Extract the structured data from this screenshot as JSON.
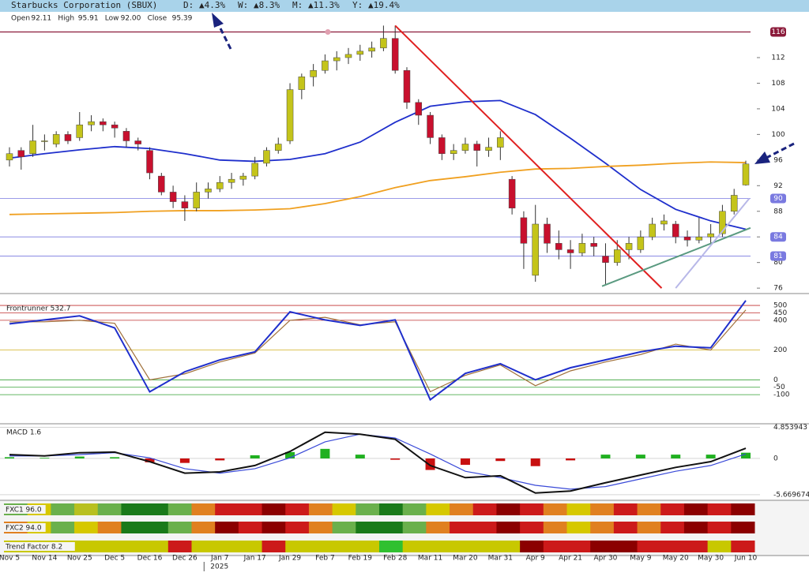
{
  "chart_data": {
    "type": "candlestick",
    "title": "Starbucks Corporation (SBUX)",
    "changes": [
      {
        "label": "D:",
        "value": "▲4.3%"
      },
      {
        "label": "W:",
        "value": "▲8.3%"
      },
      {
        "label": "M:",
        "value": "▲11.3%"
      },
      {
        "label": "Y:",
        "value": "▲19.4%"
      }
    ],
    "ohlc": [
      {
        "label": "Open",
        "value": "92.11"
      },
      {
        "label": "High",
        "value": "95.91"
      },
      {
        "label": "Low",
        "value": "92.00"
      },
      {
        "label": "Close",
        "value": "95.39"
      }
    ],
    "up_color": "#c4c41a",
    "down_color": "#c8102e",
    "categories": [
      "Nov 5",
      null,
      null,
      "Nov 14",
      null,
      null,
      "Nov 25",
      null,
      null,
      "Dec 5",
      null,
      null,
      "Dec 16",
      null,
      null,
      "Dec 26",
      null,
      null,
      "Jan 7",
      null,
      null,
      "Jan 17",
      null,
      null,
      "Jan 29",
      null,
      null,
      "Feb 7",
      null,
      null,
      "Feb 19",
      null,
      null,
      "Feb 28",
      null,
      null,
      "Mar 11",
      null,
      null,
      "Mar 20",
      null,
      null,
      "Mar 31",
      null,
      null,
      "Apr 9",
      null,
      null,
      "Apr 21",
      null,
      null,
      "Apr 30",
      null,
      null,
      "May 9",
      null,
      null,
      "May 20",
      null,
      null,
      "May 30",
      null,
      null,
      "Jun 10"
    ],
    "year_label": {
      "text": "2025",
      "x": 18
    },
    "candles": [
      [
        96,
        98,
        95,
        97
      ],
      [
        97.5,
        98,
        94.5,
        96.5
      ],
      [
        97,
        101.5,
        96.5,
        99
      ],
      [
        99,
        100,
        97.5,
        99
      ],
      [
        98.5,
        100.5,
        98,
        100
      ],
      [
        100,
        100.5,
        98.5,
        99
      ],
      [
        99.5,
        103.5,
        99,
        101.5
      ],
      [
        101.5,
        103,
        100.5,
        102
      ],
      [
        102,
        102.5,
        100.5,
        101.5
      ],
      [
        101.5,
        102,
        99.5,
        101
      ],
      [
        100.5,
        101,
        98,
        99
      ],
      [
        99,
        99.5,
        97.5,
        98.5
      ],
      [
        97.5,
        98,
        93,
        94
      ],
      [
        93.5,
        94,
        90.5,
        91
      ],
      [
        91,
        92,
        88.5,
        89.5
      ],
      [
        89.5,
        90.5,
        86.5,
        88.5
      ],
      [
        88.5,
        92.5,
        88,
        91
      ],
      [
        91,
        92.5,
        90,
        91.5
      ],
      [
        91.5,
        93.5,
        91,
        92.5
      ],
      [
        92.5,
        94,
        91.5,
        93
      ],
      [
        93,
        94,
        92,
        93.5
      ],
      [
        93.5,
        96.5,
        93,
        95.5
      ],
      [
        95.5,
        98,
        95,
        97.5
      ],
      [
        97.5,
        99.5,
        97,
        98.5
      ],
      [
        99,
        108,
        98.5,
        107
      ],
      [
        107,
        109.5,
        105.5,
        109
      ],
      [
        109,
        111,
        107.5,
        110
      ],
      [
        110,
        112.5,
        109.5,
        111.5
      ],
      [
        111.5,
        113,
        110,
        112
      ],
      [
        112,
        113.5,
        111,
        112.5
      ],
      [
        112.5,
        114,
        111.5,
        113
      ],
      [
        113,
        114.5,
        112,
        113.5
      ],
      [
        113.5,
        117,
        113,
        115
      ],
      [
        115,
        117,
        109.5,
        110
      ],
      [
        110,
        110.5,
        104,
        105
      ],
      [
        105,
        105.5,
        101.5,
        103
      ],
      [
        103,
        103.5,
        98.5,
        99.5
      ],
      [
        99.5,
        100,
        96,
        97
      ],
      [
        97,
        98.5,
        96,
        97.5
      ],
      [
        97.5,
        99.5,
        97,
        98.5
      ],
      [
        98.5,
        99,
        95,
        97.5
      ],
      [
        97.5,
        99.5,
        96.5,
        98
      ],
      [
        98,
        100.5,
        96,
        99.5
      ],
      [
        93,
        93.5,
        87.5,
        88.5
      ],
      [
        87,
        88,
        79,
        83
      ],
      [
        78,
        89,
        77,
        86
      ],
      [
        86,
        87,
        81.5,
        83
      ],
      [
        83,
        85,
        80.5,
        82
      ],
      [
        82,
        83.5,
        79,
        81.5
      ],
      [
        81.5,
        84.5,
        81,
        83
      ],
      [
        83,
        84,
        81,
        82.5
      ],
      [
        81,
        83,
        76.5,
        80
      ],
      [
        80,
        83.5,
        79.5,
        82
      ],
      [
        82,
        84,
        80.5,
        83
      ],
      [
        82,
        85,
        81.5,
        84
      ],
      [
        84,
        87,
        83.5,
        86
      ],
      [
        86,
        87.5,
        85,
        86.5
      ],
      [
        86,
        86.5,
        83,
        84
      ],
      [
        84,
        85,
        82.5,
        83.5
      ],
      [
        83.5,
        87,
        83,
        84
      ],
      [
        84,
        86,
        83,
        84.5
      ],
      [
        84.5,
        89,
        84,
        88
      ],
      [
        88,
        91.5,
        87.5,
        90.5
      ],
      [
        92.11,
        95.91,
        92.0,
        95.39
      ]
    ],
    "ylim": [
      75.4,
      118.9
    ],
    "yticks": [
      76,
      80,
      84,
      88,
      92,
      96,
      100,
      104,
      108,
      112
    ],
    "levels": [
      {
        "value": 116,
        "color": "#8b1a3a"
      },
      {
        "value": 90,
        "color": "#7a7ae0"
      },
      {
        "value": 84,
        "color": "#7a7ae0"
      },
      {
        "value": 81,
        "color": "#7a7ae0"
      }
    ],
    "lines": [
      {
        "color": "#1f2fcc",
        "x": [
          0,
          3,
          6,
          9,
          12,
          15,
          18,
          21,
          24,
          27,
          30,
          33,
          36,
          39,
          42,
          45,
          48,
          51,
          54,
          57,
          60,
          63
        ],
        "values": [
          96.3,
          97,
          97.6,
          98.1,
          97.8,
          97,
          96,
          95.8,
          96.1,
          97,
          98.8,
          101.9,
          104.4,
          105.1,
          105.3,
          103.1,
          99.4,
          95.5,
          91.4,
          88.3,
          86.5,
          85.2
        ]
      },
      {
        "color": "#f0a020",
        "x": [
          0,
          3,
          6,
          9,
          12,
          15,
          18,
          21,
          24,
          27,
          30,
          33,
          36,
          39,
          42,
          45,
          48,
          51,
          54,
          57,
          60,
          63
        ],
        "values": [
          87.5,
          87.6,
          87.7,
          87.8,
          88,
          88.1,
          88.1,
          88.2,
          88.4,
          89.2,
          90.3,
          91.7,
          92.8,
          93.4,
          94.1,
          94.6,
          94.7,
          95,
          95.2,
          95.5,
          95.7,
          95.6
        ]
      }
    ],
    "trendlines": [
      {
        "color": "#e02020",
        "x": [
          33,
          55.8
        ],
        "values": [
          117,
          76
        ]
      },
      {
        "color": "#5a9a80",
        "x": [
          50.7,
          63.4
        ],
        "values": [
          76.3,
          85.4
        ]
      },
      {
        "color": "#b8b8e8",
        "x": [
          57,
          63.3
        ],
        "values": [
          76,
          90
        ]
      }
    ],
    "frontrunner": {
      "title": "Frontrunner 532.7",
      "ylim": [
        -285,
        564
      ],
      "yticks": [
        500,
        450,
        400,
        200,
        0,
        -50,
        -100
      ],
      "tick_colors": [
        "#c03030",
        "#c03030",
        "#c03030",
        "#d0b020",
        "#30a030",
        "#30a030",
        "#30a030"
      ],
      "series": [
        {
          "color": "#1f2fcc",
          "x": [
            0,
            3,
            6,
            9,
            12,
            15,
            18,
            21,
            24,
            27,
            30,
            33,
            36,
            39,
            42,
            45,
            48,
            51,
            54,
            57,
            60,
            63
          ],
          "values": [
            376,
            403,
            430,
            349,
            -81,
            54,
            134,
            188,
            457,
            403,
            366,
            403,
            -134,
            43,
            108,
            0,
            81,
            134,
            188,
            226,
            215,
            532.7
          ]
        },
        {
          "color": "#a0703a",
          "x": [
            0,
            3,
            6,
            9,
            12,
            15,
            18,
            21,
            24,
            27,
            30,
            33,
            36,
            39,
            42,
            45,
            48,
            51,
            54,
            57,
            60,
            63
          ],
          "values": [
            390,
            390,
            400,
            380,
            0,
            40,
            120,
            180,
            400,
            420,
            370,
            390,
            -80,
            30,
            100,
            -40,
            60,
            120,
            170,
            240,
            200,
            470
          ]
        }
      ]
    },
    "macd": {
      "title": "MACD 1.6",
      "ylim": [
        -6.3,
        5.43
      ],
      "yticks": [
        4.853943,
        0,
        -5.669674
      ],
      "x": [
        0,
        3,
        6,
        9,
        12,
        15,
        18,
        21,
        24,
        27,
        30,
        33,
        36,
        39,
        42,
        45,
        48,
        51,
        54,
        57,
        60,
        63
      ],
      "series": [
        {
          "color": "#111111",
          "values": [
            0.6,
            0.4,
            0.9,
            1.0,
            -0.5,
            -2.3,
            -2.1,
            -1.1,
            1.1,
            4.1,
            3.8,
            3.0,
            -1.1,
            -3.0,
            -2.7,
            -5.4,
            -5.1,
            -3.8,
            -2.6,
            -1.4,
            -0.5,
            1.6
          ]
        },
        {
          "color": "#3a4ad8",
          "values": [
            0.4,
            0.4,
            0.6,
            0.9,
            0.1,
            -1.6,
            -2.3,
            -1.6,
            0.1,
            2.6,
            3.8,
            3.2,
            0.7,
            -2,
            -3,
            -4.2,
            -4.8,
            -4.4,
            -3.2,
            -2,
            -1.1,
            0.7
          ]
        }
      ],
      "histogram": [
        0.2,
        0.1,
        0.3,
        0.2,
        -0.6,
        -0.7,
        -0.3,
        0.5,
        1.0,
        1.5,
        0.6,
        -0.2,
        -1.8,
        -1.0,
        -0.4,
        -1.2,
        -0.3,
        0.6,
        0.6,
        0.6,
        0.6,
        0.9
      ],
      "hist_up": "#20b020",
      "hist_down": "#c81010"
    },
    "strips": [
      {
        "label": "FXC1 96.0",
        "colors": [
          "#6ab04c",
          "#d6c800",
          "#6ab04c",
          "#b8c020",
          "#6ab04c",
          "#1a7a1a",
          "#1a7a1a",
          "#6ab04c",
          "#e08020",
          "#cc1a1a",
          "#cc1a1a",
          "#8b0000",
          "#cc1a1a",
          "#e08020",
          "#d6c800",
          "#6ab04c",
          "#1a7a1a",
          "#6ab04c",
          "#d6c800",
          "#e08020",
          "#cc1a1a",
          "#8b0000",
          "#cc1a1a",
          "#e08020",
          "#d6c800",
          "#e08020",
          "#cc1a1a",
          "#e08020",
          "#cc1a1a",
          "#8b0000",
          "#cc1a1a",
          "#8b0000"
        ]
      },
      {
        "label": "FXC2 94.0",
        "colors": [
          "#e08020",
          "#d6c800",
          "#6ab04c",
          "#d6c800",
          "#e08020",
          "#1a7a1a",
          "#1a7a1a",
          "#6ab04c",
          "#e08020",
          "#8b0000",
          "#cc1a1a",
          "#8b0000",
          "#cc1a1a",
          "#e08020",
          "#6ab04c",
          "#1a7a1a",
          "#1a7a1a",
          "#6ab04c",
          "#e08020",
          "#cc1a1a",
          "#cc1a1a",
          "#8b0000",
          "#cc1a1a",
          "#e08020",
          "#d6c800",
          "#e08020",
          "#cc1a1a",
          "#e08020",
          "#cc1a1a",
          "#8b0000",
          "#cc1a1a",
          "#8b0000"
        ]
      },
      {
        "label": "Trend Factor 8.2",
        "colors": [
          "#c8c800",
          "#c8c800",
          "#c8c800",
          "#c8c800",
          "#c8c800",
          "#c8c800",
          "#c8c800",
          "#cc1a1a",
          "#c8c800",
          "#c8c800",
          "#c8c800",
          "#cc1a1a",
          "#c8c800",
          "#c8c800",
          "#c8c800",
          "#c8c800",
          "#30c030",
          "#c8c800",
          "#c8c800",
          "#c8c800",
          "#c8c800",
          "#c8c800",
          "#8b0000",
          "#cc1a1a",
          "#cc1a1a",
          "#8b0000",
          "#8b0000",
          "#cc1a1a",
          "#cc1a1a",
          "#cc1a1a",
          "#c8c800",
          "#cc1a1a"
        ]
      }
    ]
  }
}
